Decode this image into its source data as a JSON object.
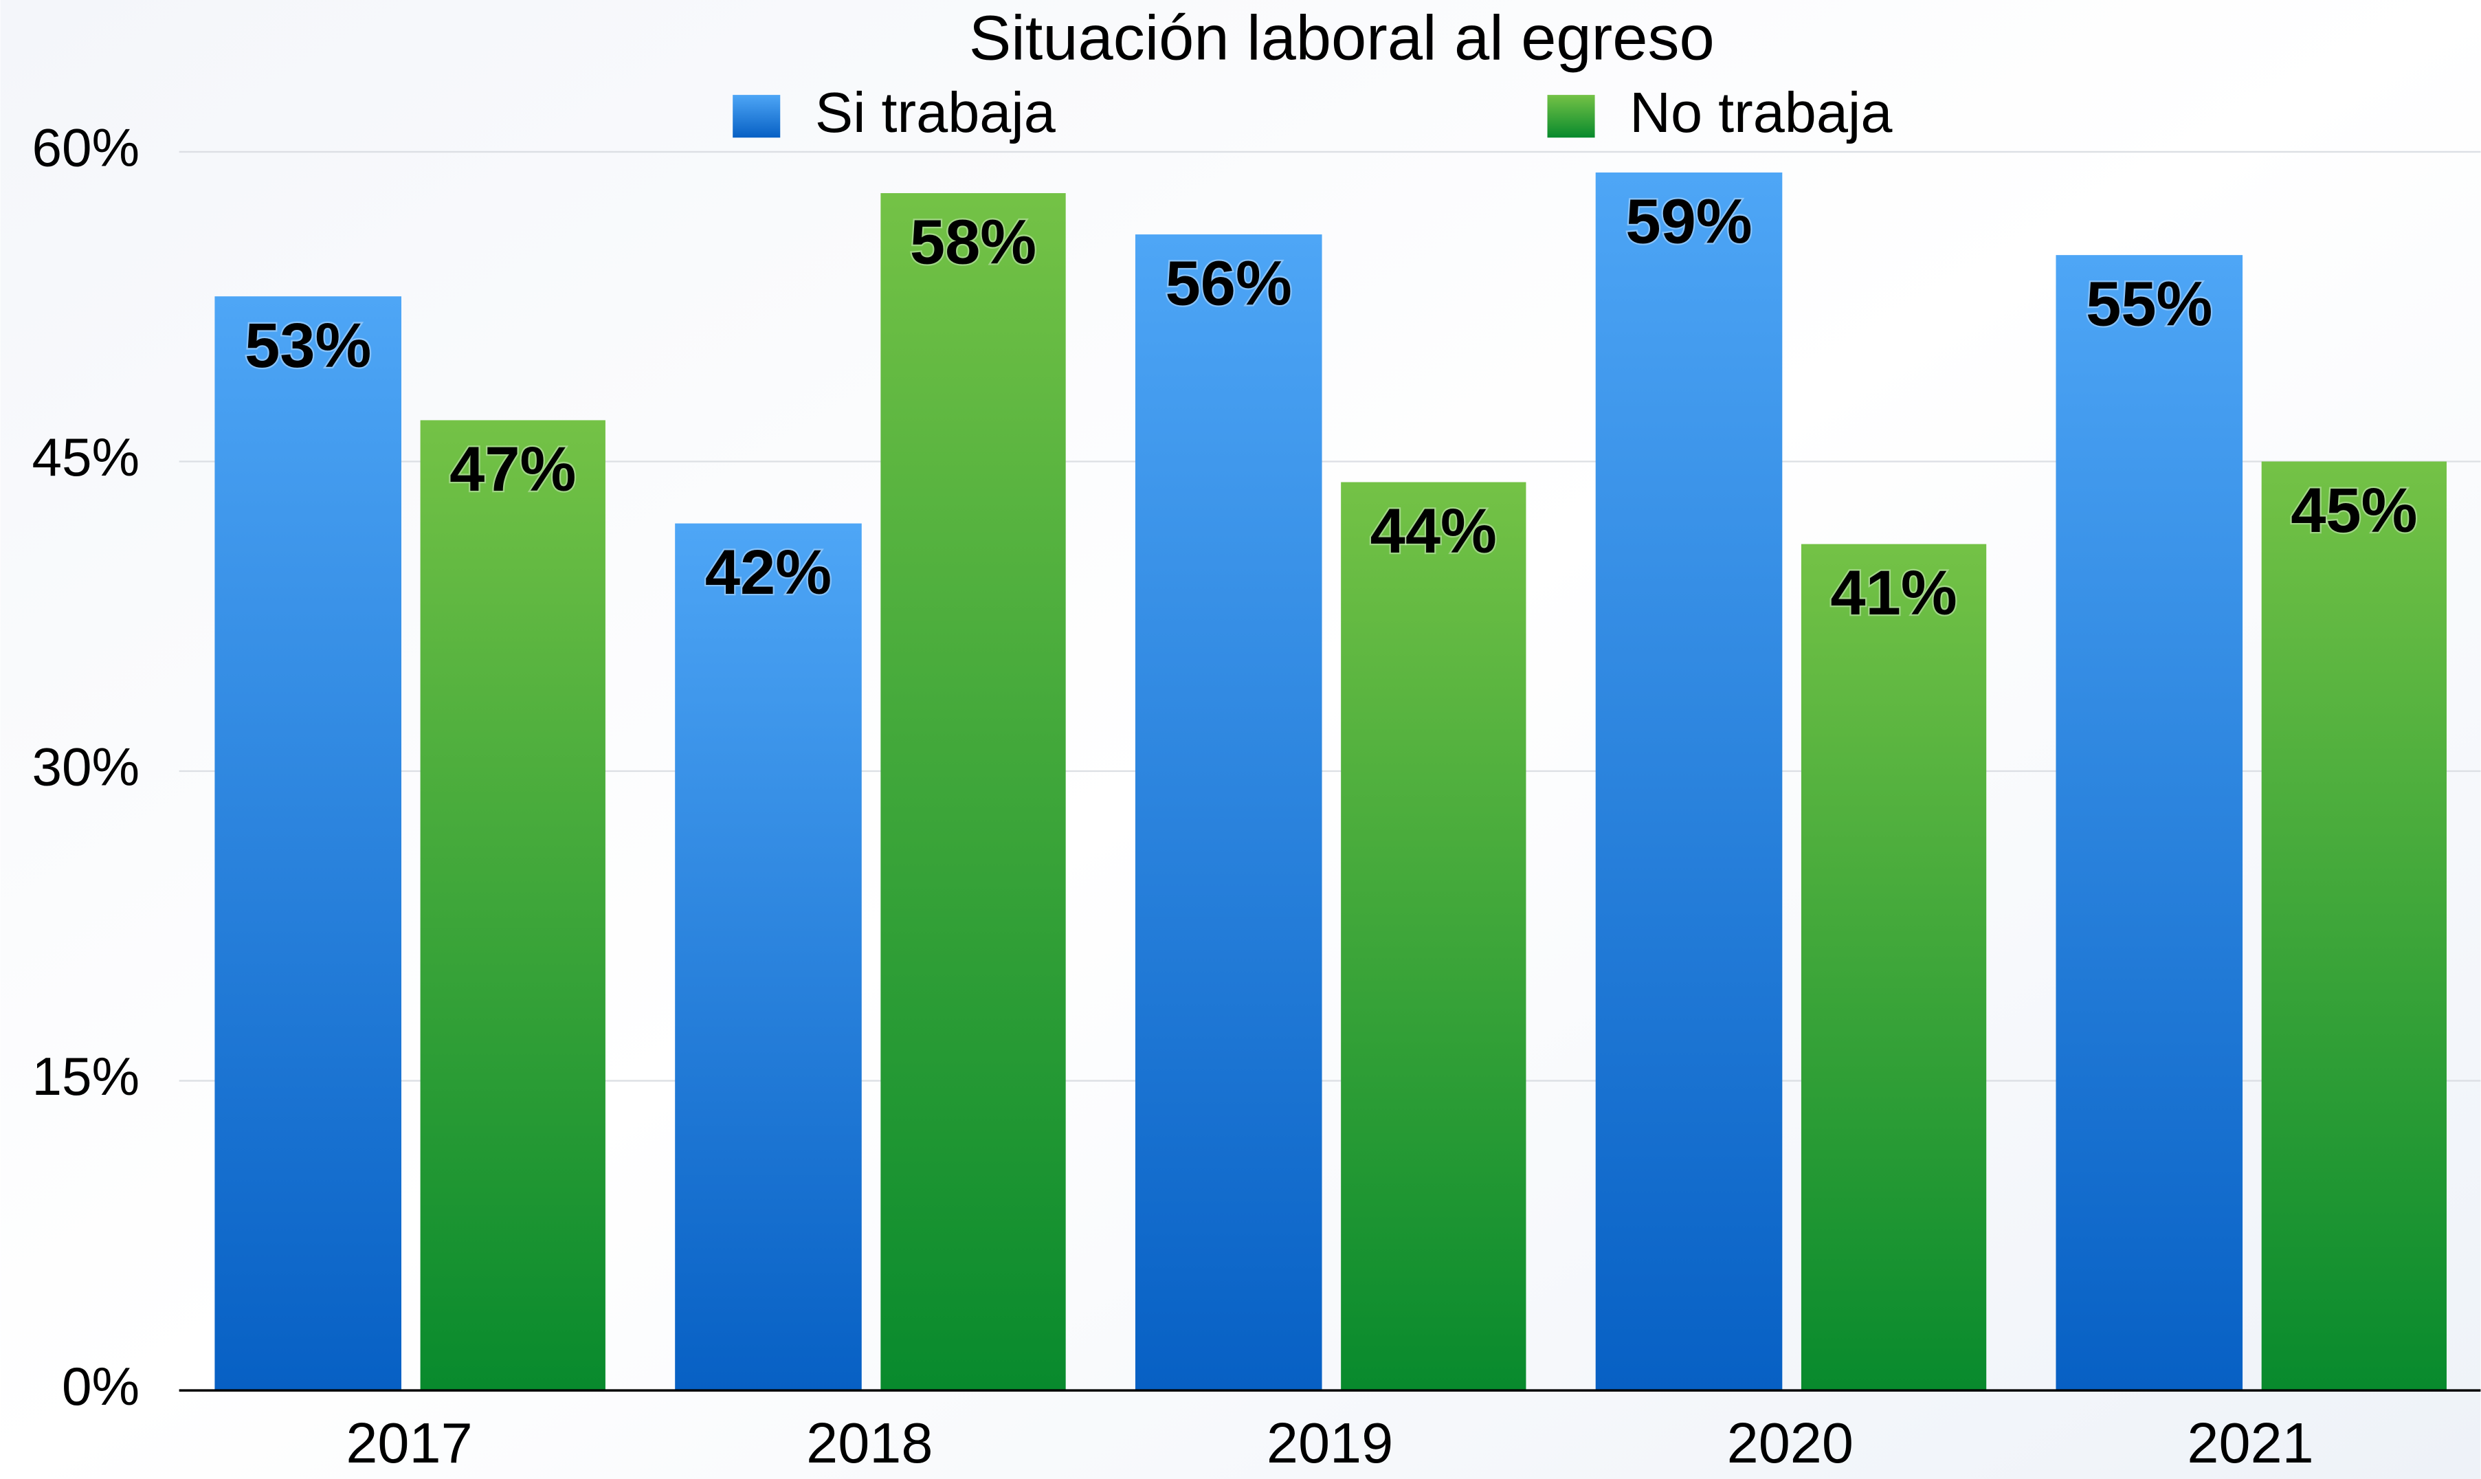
{
  "chart_data": {
    "type": "bar",
    "title": "Situación laboral al egreso",
    "categories": [
      "2017",
      "2018",
      "2019",
      "2020",
      "2021"
    ],
    "series": [
      {
        "name": "Si trabaja",
        "color": "#1f7fe0",
        "values": [
          53,
          42,
          56,
          59,
          55
        ],
        "value_labels": [
          "53%",
          "42%",
          "56%",
          "59%",
          "55%"
        ]
      },
      {
        "name": "No trabaja",
        "color": "#3aa83a",
        "values": [
          47,
          58,
          44,
          41,
          45
        ],
        "value_labels": [
          "47%",
          "58%",
          "44%",
          "41%",
          "45%"
        ]
      }
    ],
    "ylim": [
      0,
      60
    ],
    "yticks": [
      {
        "value": 0,
        "label": "0%"
      },
      {
        "value": 15,
        "label": "15%"
      },
      {
        "value": 30,
        "label": "30%"
      },
      {
        "value": 45,
        "label": "45%"
      },
      {
        "value": 60,
        "label": "60%"
      }
    ],
    "grid": true,
    "legend": "top"
  }
}
